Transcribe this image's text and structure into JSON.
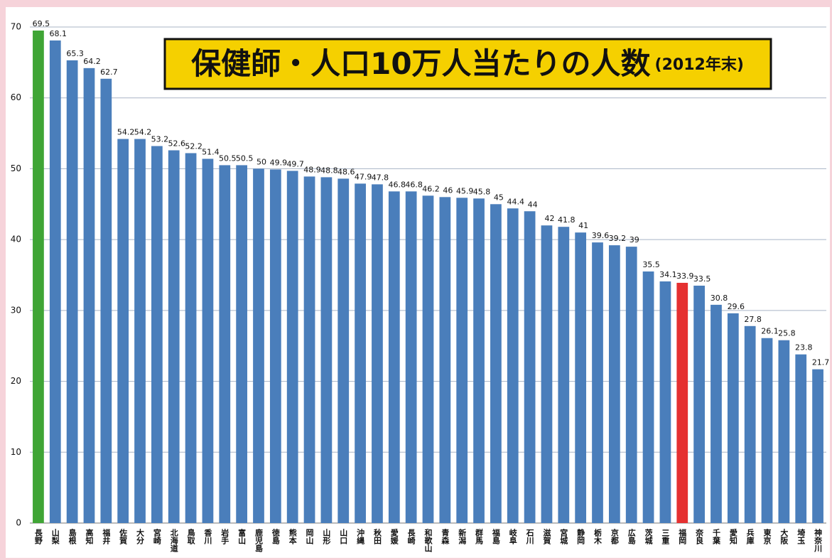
{
  "chart_data": {
    "type": "bar",
    "title": "保健師・人口10万人当たりの人数",
    "subtitle": "(2012年末)",
    "categories": [
      "長野",
      "山梨",
      "島根",
      "高知",
      "福井",
      "佐賀",
      "大分",
      "宮崎",
      "北海道",
      "鳥取",
      "香川",
      "岩手",
      "富山",
      "鹿児島",
      "徳島",
      "熊本",
      "岡山",
      "山形",
      "山口",
      "沖縄",
      "秋田",
      "愛媛",
      "長崎",
      "和歌山",
      "青森",
      "新潟",
      "群馬",
      "福島",
      "岐阜",
      "石川",
      "滋賀",
      "宮城",
      "静岡",
      "栃木",
      "京都",
      "広島",
      "茨城",
      "三重",
      "福岡",
      "奈良",
      "千葉",
      "愛知",
      "兵庫",
      "東京",
      "大阪",
      "埼玉",
      "神奈川"
    ],
    "values": [
      69.5,
      68.1,
      65.3,
      64.2,
      62.7,
      54.2,
      54.2,
      53.2,
      52.6,
      52.2,
      51.4,
      50.5,
      50.5,
      50,
      49.9,
      49.7,
      48.9,
      48.8,
      48.6,
      47.9,
      47.8,
      46.8,
      46.8,
      46.2,
      46,
      45.9,
      45.8,
      45,
      44.4,
      44,
      42,
      41.8,
      41,
      39.6,
      39.2,
      39,
      35.5,
      34.1,
      33.9,
      33.5,
      30.8,
      29.6,
      27.8,
      26.1,
      25.8,
      23.8,
      21.7
    ],
    "colors": [
      "#3fa535",
      "#4a7ebb",
      "#4a7ebb",
      "#4a7ebb",
      "#4a7ebb",
      "#4a7ebb",
      "#4a7ebb",
      "#4a7ebb",
      "#4a7ebb",
      "#4a7ebb",
      "#4a7ebb",
      "#4a7ebb",
      "#4a7ebb",
      "#4a7ebb",
      "#4a7ebb",
      "#4a7ebb",
      "#4a7ebb",
      "#4a7ebb",
      "#4a7ebb",
      "#4a7ebb",
      "#4a7ebb",
      "#4a7ebb",
      "#4a7ebb",
      "#4a7ebb",
      "#4a7ebb",
      "#4a7ebb",
      "#4a7ebb",
      "#4a7ebb",
      "#4a7ebb",
      "#4a7ebb",
      "#4a7ebb",
      "#4a7ebb",
      "#4a7ebb",
      "#4a7ebb",
      "#4a7ebb",
      "#4a7ebb",
      "#4a7ebb",
      "#4a7ebb",
      "#e53030",
      "#4a7ebb",
      "#4a7ebb",
      "#4a7ebb",
      "#4a7ebb",
      "#4a7ebb",
      "#4a7ebb",
      "#4a7ebb",
      "#4a7ebb"
    ],
    "value_label_colors": [
      "#111",
      "#111",
      "#111",
      "#111",
      "#111",
      "#111",
      "#111",
      "#111",
      "#111",
      "#111",
      "#111",
      "#111",
      "#111",
      "#111",
      "#111",
      "#111",
      "#111",
      "#111",
      "#111",
      "#111",
      "#111",
      "#111",
      "#111",
      "#111",
      "#111",
      "#111",
      "#111",
      "#111",
      "#111",
      "#111",
      "#111",
      "#111",
      "#111",
      "#111",
      "#111",
      "#111",
      "#111",
      "#111",
      "#e53030",
      "#111",
      "#111",
      "#111",
      "#111",
      "#111",
      "#111",
      "#111",
      "#111"
    ],
    "ylim": [
      0,
      70
    ],
    "yticks": [
      0,
      10,
      20,
      30,
      40,
      50,
      60,
      70
    ],
    "grid": true
  }
}
